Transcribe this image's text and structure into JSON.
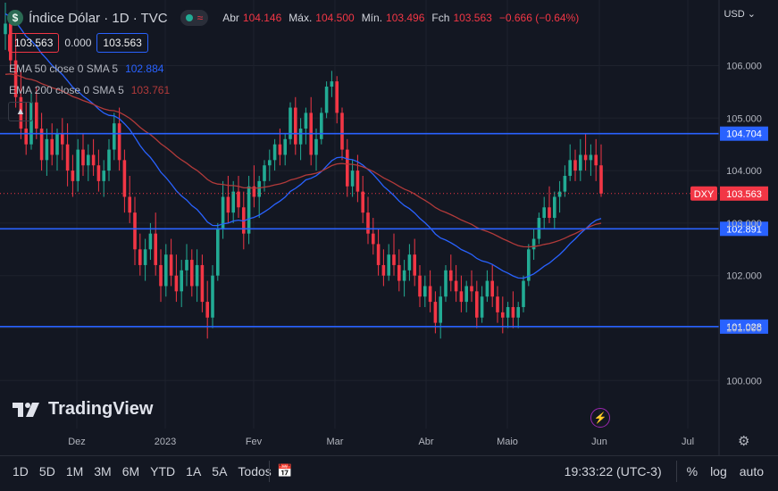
{
  "header": {
    "symbol_icon": "$",
    "title": "Índice Dólar · 1D · TVC",
    "status_icon": "market-status-dot",
    "wave_icon": "≈",
    "open_label": "Abr",
    "open_value": "104.146",
    "high_label": "Máx.",
    "high_value": "104.500",
    "low_label": "Mín.",
    "low_value": "103.496",
    "close_label": "Fch",
    "close_value": "103.563",
    "change": "−0.666 (−0.64%)"
  },
  "prices": {
    "sell": "103.563",
    "spread": "0.000",
    "buy": "103.563"
  },
  "indicators": [
    {
      "label": "EMA 50 close 0 SMA 5",
      "value": "102.884"
    },
    {
      "label": "EMA 200 close 0 SMA 5",
      "value": "103.761"
    }
  ],
  "currency": "USD",
  "brand": "TradingView",
  "toolbar": {
    "timeframes": [
      "1D",
      "5D",
      "1M",
      "3M",
      "6M",
      "YTD",
      "1A",
      "5A",
      "Todos"
    ],
    "time": "19:33:22 (UTC-3)",
    "percent": "%",
    "log": "log",
    "auto": "auto"
  },
  "chart_data": {
    "type": "candlestick",
    "y_ticks": [
      "106.000",
      "105.000",
      "104.000",
      "103.000",
      "102.000",
      "101.000",
      "100.000"
    ],
    "x_ticks": [
      "Dez",
      "2023",
      "Fev",
      "Mar",
      "Abr",
      "Maio",
      "Jun",
      "Jul"
    ],
    "ylim": [
      99.5,
      107.2
    ],
    "horizontal_lines": [
      {
        "value": 104.704,
        "label": "104.704",
        "color": "#2962ff"
      },
      {
        "value": 102.891,
        "label": "102.891",
        "color": "#2962ff"
      },
      {
        "value": 101.028,
        "label": "101.028",
        "color": "#2962ff"
      }
    ],
    "last_price": {
      "value": 103.563,
      "symbol": "DXY",
      "label": "103.563",
      "color": "#f23645"
    },
    "up_color": "#22ab94",
    "down_color": "#f23645",
    "ema50_color": "#2962ff",
    "ema200_color": "#b23a3a",
    "candles": [
      [
        106.6,
        107.2,
        106.3,
        106.8
      ],
      [
        106.8,
        107.0,
        105.9,
        106.1
      ],
      [
        106.1,
        106.6,
        105.2,
        105.4
      ],
      [
        105.4,
        105.9,
        104.6,
        104.8
      ],
      [
        104.8,
        105.3,
        104.3,
        104.5
      ],
      [
        104.5,
        105.5,
        104.4,
        105.3
      ],
      [
        105.3,
        105.6,
        104.6,
        104.8
      ],
      [
        104.8,
        105.1,
        104.0,
        104.2
      ],
      [
        104.2,
        104.8,
        103.9,
        104.6
      ],
      [
        104.6,
        104.9,
        104.1,
        104.3
      ],
      [
        104.3,
        104.8,
        104.0,
        104.7
      ],
      [
        104.7,
        105.0,
        104.2,
        104.5
      ],
      [
        104.5,
        104.9,
        103.7,
        104.0
      ],
      [
        104.0,
        104.3,
        103.5,
        103.8
      ],
      [
        103.8,
        104.6,
        103.6,
        104.4
      ],
      [
        104.4,
        104.7,
        103.9,
        104.1
      ],
      [
        104.1,
        104.5,
        103.8,
        104.3
      ],
      [
        104.3,
        104.6,
        103.9,
        104.1
      ],
      [
        104.1,
        104.4,
        103.6,
        103.8
      ],
      [
        103.8,
        104.2,
        103.5,
        104.0
      ],
      [
        104.0,
        104.6,
        103.8,
        104.4
      ],
      [
        104.4,
        105.1,
        104.2,
        104.9
      ],
      [
        104.9,
        105.2,
        104.0,
        104.2
      ],
      [
        104.2,
        104.4,
        103.2,
        103.5
      ],
      [
        103.5,
        103.9,
        103.0,
        103.2
      ],
      [
        103.2,
        103.5,
        102.2,
        102.5
      ],
      [
        102.5,
        102.8,
        102.0,
        102.2
      ],
      [
        102.2,
        102.7,
        101.9,
        102.5
      ],
      [
        102.5,
        103.0,
        102.3,
        102.8
      ],
      [
        102.8,
        103.2,
        102.0,
        102.2
      ],
      [
        102.2,
        102.5,
        101.5,
        101.8
      ],
      [
        101.8,
        102.6,
        101.6,
        102.4
      ],
      [
        102.4,
        102.7,
        101.8,
        102.0
      ],
      [
        102.0,
        102.4,
        101.5,
        101.7
      ],
      [
        101.7,
        102.3,
        101.4,
        102.1
      ],
      [
        102.1,
        102.6,
        101.8,
        102.3
      ],
      [
        102.3,
        102.5,
        101.6,
        101.8
      ],
      [
        101.8,
        102.5,
        101.5,
        102.2
      ],
      [
        102.2,
        102.4,
        101.3,
        101.5
      ],
      [
        101.5,
        101.9,
        100.8,
        101.2
      ],
      [
        101.2,
        102.2,
        101.0,
        102.0
      ],
      [
        102.0,
        103.0,
        101.9,
        102.9
      ],
      [
        102.9,
        103.8,
        102.7,
        103.5
      ],
      [
        103.5,
        103.9,
        103.0,
        103.2
      ],
      [
        103.2,
        103.8,
        103.0,
        103.6
      ],
      [
        103.6,
        103.9,
        103.1,
        103.3
      ],
      [
        103.3,
        103.6,
        102.5,
        102.8
      ],
      [
        102.8,
        103.9,
        102.6,
        103.7
      ],
      [
        103.7,
        104.1,
        103.3,
        103.5
      ],
      [
        103.5,
        103.9,
        103.1,
        103.8
      ],
      [
        103.8,
        104.2,
        103.6,
        104.1
      ],
      [
        104.1,
        104.4,
        103.8,
        104.2
      ],
      [
        104.2,
        104.6,
        104.0,
        104.5
      ],
      [
        104.5,
        104.8,
        104.1,
        104.3
      ],
      [
        104.3,
        104.7,
        104.1,
        104.6
      ],
      [
        104.6,
        105.3,
        104.5,
        105.2
      ],
      [
        105.2,
        105.4,
        104.3,
        104.5
      ],
      [
        104.5,
        105.0,
        104.2,
        104.8
      ],
      [
        104.8,
        105.2,
        104.5,
        105.1
      ],
      [
        105.1,
        105.4,
        104.1,
        104.3
      ],
      [
        104.3,
        104.8,
        104.0,
        104.6
      ],
      [
        104.6,
        105.2,
        104.5,
        105.1
      ],
      [
        105.1,
        105.7,
        105.0,
        105.6
      ],
      [
        105.6,
        105.9,
        105.4,
        105.7
      ],
      [
        105.7,
        105.8,
        104.9,
        105.1
      ],
      [
        105.1,
        105.2,
        104.2,
        104.4
      ],
      [
        104.4,
        104.6,
        103.5,
        103.7
      ],
      [
        103.7,
        104.2,
        103.5,
        104.0
      ],
      [
        104.0,
        104.3,
        103.4,
        103.6
      ],
      [
        103.6,
        103.9,
        103.0,
        103.2
      ],
      [
        103.2,
        103.5,
        102.6,
        102.8
      ],
      [
        102.8,
        103.1,
        102.4,
        102.6
      ],
      [
        102.6,
        102.9,
        102.0,
        102.2
      ],
      [
        102.2,
        102.5,
        101.8,
        102.0
      ],
      [
        102.0,
        102.6,
        101.9,
        102.4
      ],
      [
        102.4,
        102.8,
        102.0,
        102.2
      ],
      [
        102.2,
        102.5,
        101.7,
        101.9
      ],
      [
        101.9,
        102.3,
        101.6,
        102.1
      ],
      [
        102.1,
        102.6,
        101.9,
        102.4
      ],
      [
        102.4,
        102.7,
        101.8,
        102.0
      ],
      [
        102.0,
        102.2,
        101.4,
        101.6
      ],
      [
        101.6,
        102.0,
        101.4,
        101.8
      ],
      [
        101.8,
        102.1,
        101.3,
        101.5
      ],
      [
        101.5,
        101.7,
        100.9,
        101.1
      ],
      [
        101.1,
        101.8,
        100.8,
        101.6
      ],
      [
        101.6,
        102.2,
        101.5,
        102.1
      ],
      [
        102.1,
        102.4,
        101.7,
        101.9
      ],
      [
        101.9,
        102.2,
        101.5,
        101.7
      ],
      [
        101.7,
        102.0,
        101.3,
        101.5
      ],
      [
        101.5,
        101.9,
        101.3,
        101.8
      ],
      [
        101.8,
        102.1,
        101.5,
        101.7
      ],
      [
        101.7,
        101.9,
        101.0,
        101.2
      ],
      [
        101.2,
        101.8,
        101.1,
        101.6
      ],
      [
        101.6,
        102.1,
        101.5,
        101.9
      ],
      [
        101.9,
        102.2,
        101.4,
        101.6
      ],
      [
        101.6,
        101.8,
        101.1,
        101.3
      ],
      [
        101.3,
        101.6,
        100.9,
        101.2
      ],
      [
        101.2,
        101.5,
        101.0,
        101.4
      ],
      [
        101.4,
        101.7,
        101.0,
        101.2
      ],
      [
        101.2,
        101.5,
        101.0,
        101.4
      ],
      [
        101.4,
        102.0,
        101.3,
        101.9
      ],
      [
        101.9,
        102.6,
        101.8,
        102.5
      ],
      [
        102.5,
        102.9,
        102.3,
        102.7
      ],
      [
        102.7,
        103.2,
        102.6,
        103.1
      ],
      [
        103.1,
        103.5,
        102.9,
        103.3
      ],
      [
        103.3,
        103.7,
        103.0,
        103.1
      ],
      [
        103.1,
        103.6,
        102.9,
        103.5
      ],
      [
        103.5,
        103.8,
        103.2,
        103.6
      ],
      [
        103.6,
        104.1,
        103.5,
        103.9
      ],
      [
        103.9,
        104.5,
        103.8,
        104.2
      ],
      [
        104.2,
        104.4,
        103.8,
        104.0
      ],
      [
        104.0,
        104.6,
        103.8,
        104.3
      ],
      [
        104.3,
        104.7,
        104.0,
        104.2
      ],
      [
        104.2,
        104.5,
        103.9,
        104.3
      ],
      [
        104.3,
        104.6,
        103.8,
        104.1
      ],
      [
        104.1,
        104.5,
        103.5,
        103.563
      ]
    ]
  }
}
